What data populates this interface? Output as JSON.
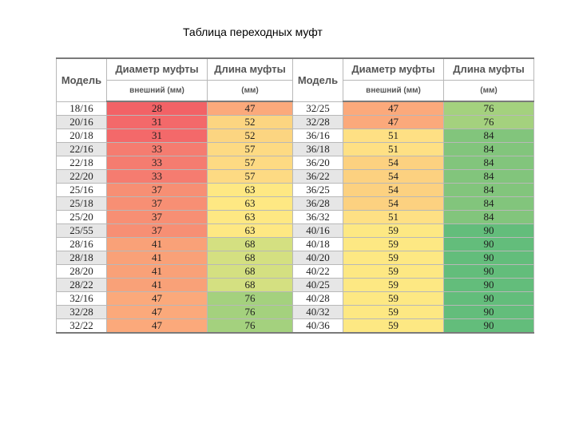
{
  "title": "Таблица переходных муфт",
  "headers": {
    "model": "Модель",
    "diameter_top": "Диаметр муфты",
    "diameter_bottom": "внешний (мм)",
    "length_top": "Длина муфты",
    "length_bottom": "(мм)"
  },
  "colors": {
    "model_odd": "#ffffff",
    "model_even": "#e6e6e6",
    "scale": {
      "28": "#f26266",
      "31": "#f3696a",
      "33": "#f57c70",
      "37": "#f78f74",
      "41": "#f9a178",
      "47": "#fba97b",
      "51": "#fee084",
      "54": "#fcd180",
      "59": "#fde883",
      "52": "#fcd581",
      "57": "#fdda83",
      "63": "#fee883",
      "68": "#d4e081",
      "76": "#a4d17e",
      "84": "#82c57c",
      "90": "#63bd7b"
    }
  },
  "rows_left": [
    {
      "model": "18/16",
      "diameter": "28",
      "length": "47"
    },
    {
      "model": "20/16",
      "diameter": "31",
      "length": "52"
    },
    {
      "model": "20/18",
      "diameter": "31",
      "length": "52"
    },
    {
      "model": "22/16",
      "diameter": "33",
      "length": "57"
    },
    {
      "model": "22/18",
      "diameter": "33",
      "length": "57"
    },
    {
      "model": "22/20",
      "diameter": "33",
      "length": "57"
    },
    {
      "model": "25/16",
      "diameter": "37",
      "length": "63"
    },
    {
      "model": "25/18",
      "diameter": "37",
      "length": "63"
    },
    {
      "model": "25/20",
      "diameter": "37",
      "length": "63"
    },
    {
      "model": "25/55",
      "diameter": "37",
      "length": "63"
    },
    {
      "model": "28/16",
      "diameter": "41",
      "length": "68"
    },
    {
      "model": "28/18",
      "diameter": "41",
      "length": "68"
    },
    {
      "model": "28/20",
      "diameter": "41",
      "length": "68"
    },
    {
      "model": "28/22",
      "diameter": "41",
      "length": "68"
    },
    {
      "model": "32/16",
      "diameter": "47",
      "length": "76"
    },
    {
      "model": "32/28",
      "diameter": "47",
      "length": "76"
    },
    {
      "model": "32/22",
      "diameter": "47",
      "length": "76"
    }
  ],
  "rows_right": [
    {
      "model": "32/25",
      "diameter": "47",
      "length": "76"
    },
    {
      "model": "32/28",
      "diameter": "47",
      "length": "76"
    },
    {
      "model": "36/16",
      "diameter": "51",
      "length": "84"
    },
    {
      "model": "36/18",
      "diameter": "51",
      "length": "84"
    },
    {
      "model": "36/20",
      "diameter": "54",
      "length": "84"
    },
    {
      "model": "36/22",
      "diameter": "54",
      "length": "84"
    },
    {
      "model": "36/25",
      "diameter": "54",
      "length": "84"
    },
    {
      "model": "36/28",
      "diameter": "54",
      "length": "84"
    },
    {
      "model": "36/32",
      "diameter": "51",
      "length": "84"
    },
    {
      "model": "40/16",
      "diameter": "59",
      "length": "90"
    },
    {
      "model": "40/18",
      "diameter": "59",
      "length": "90"
    },
    {
      "model": "40/20",
      "diameter": "59",
      "length": "90"
    },
    {
      "model": "40/22",
      "diameter": "59",
      "length": "90"
    },
    {
      "model": "40/25",
      "diameter": "59",
      "length": "90"
    },
    {
      "model": "40/28",
      "diameter": "59",
      "length": "90"
    },
    {
      "model": "40/32",
      "diameter": "59",
      "length": "90"
    },
    {
      "model": "40/36",
      "diameter": "59",
      "length": "90"
    }
  ]
}
